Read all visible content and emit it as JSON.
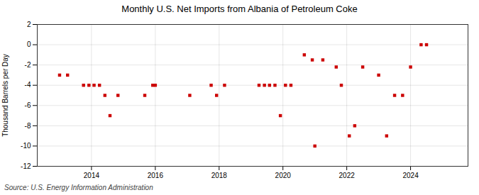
{
  "chart_data": {
    "type": "scatter",
    "title": "Monthly U.S. Net Imports from Albania of Petroleum Coke",
    "ylabel": "Thousand Barrels per Day",
    "source": "Source: U.S. Energy Information Administration",
    "color": "#cc0000",
    "marker": "square",
    "grid": true,
    "xlim": [
      2012.3,
      2025.8
    ],
    "xticks": [
      2014,
      2016,
      2018,
      2020,
      2022,
      2024
    ],
    "ylim": [
      -12,
      2
    ],
    "yticks": [
      2,
      0,
      -2,
      -4,
      -6,
      -8,
      -10,
      -12
    ],
    "x": [
      2013.0,
      2013.25,
      2013.75,
      2013.92,
      2014.08,
      2014.25,
      2014.42,
      2014.58,
      2014.83,
      2015.67,
      2015.92,
      2016.0,
      2017.08,
      2017.75,
      2017.92,
      2018.17,
      2019.25,
      2019.42,
      2019.58,
      2019.75,
      2019.92,
      2020.08,
      2020.25,
      2020.67,
      2020.92,
      2021.0,
      2021.25,
      2021.67,
      2021.83,
      2022.08,
      2022.25,
      2022.5,
      2023.0,
      2023.25,
      2023.5,
      2023.75,
      2024.0,
      2024.33,
      2024.5
    ],
    "values": [
      -3.0,
      -3.0,
      -4.0,
      -4.0,
      -4.0,
      -4.0,
      -5.0,
      -7.0,
      -5.0,
      -5.0,
      -4.0,
      -4.0,
      -5.0,
      -4.0,
      -5.0,
      -4.0,
      -4.0,
      -4.0,
      -4.0,
      -4.0,
      -7.0,
      -4.0,
      -4.0,
      -1.0,
      -1.5,
      -10.0,
      -1.5,
      -2.2,
      -4.0,
      -9.0,
      -8.0,
      -2.2,
      -3.0,
      -9.0,
      -5.0,
      -5.0,
      -2.2,
      0.0,
      0.0
    ]
  }
}
